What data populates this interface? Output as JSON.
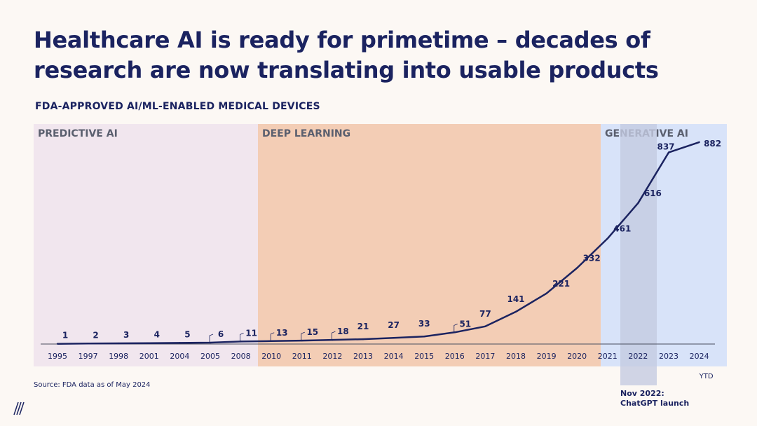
{
  "title_line1": "Healthcare AI is ready for primetime – decades of",
  "title_line2": "research are now translating into usable products",
  "source": "Source: FDA data as of May 2024",
  "colors": {
    "predictive": "#f1e6ee",
    "deep_learning": "#f3cdb5",
    "generative": "#d8e3f9",
    "chatgpt_band": "#c4cbe1",
    "line": "#1b2360"
  },
  "chart_data": {
    "type": "line",
    "title": "FDA-APPROVED AI/ML-ENABLED MEDICAL DEVICES",
    "categories": [
      "1995",
      "1997",
      "1998",
      "2001",
      "2004",
      "2005",
      "2008",
      "2010",
      "2011",
      "2012",
      "2013",
      "2014",
      "2015",
      "2016",
      "2017",
      "2018",
      "2019",
      "2020",
      "2021",
      "2022",
      "2023",
      "2024"
    ],
    "series": [
      {
        "values": [
          1,
          2,
          3,
          4,
          5,
          6,
          11,
          13,
          15,
          18,
          21,
          27,
          33,
          51,
          77,
          141,
          221,
          332,
          461,
          616,
          837,
          882
        ]
      }
    ],
    "ylim": [
      0,
      900
    ],
    "xlabel": "",
    "ylabel": "",
    "eras": [
      {
        "label": "PREDICTIVE AI",
        "from": "1995",
        "to": "2008"
      },
      {
        "label": "DEEP LEARNING",
        "from": "2010",
        "to": "2020"
      },
      {
        "label": "GENERATIVE AI",
        "from": "2021",
        "to": "2024"
      }
    ],
    "annotation": {
      "category": "2022",
      "line1": "Nov 2022:",
      "line2": "ChatGPT launch"
    },
    "ytd_note": {
      "category": "2024",
      "text": "YTD"
    }
  }
}
